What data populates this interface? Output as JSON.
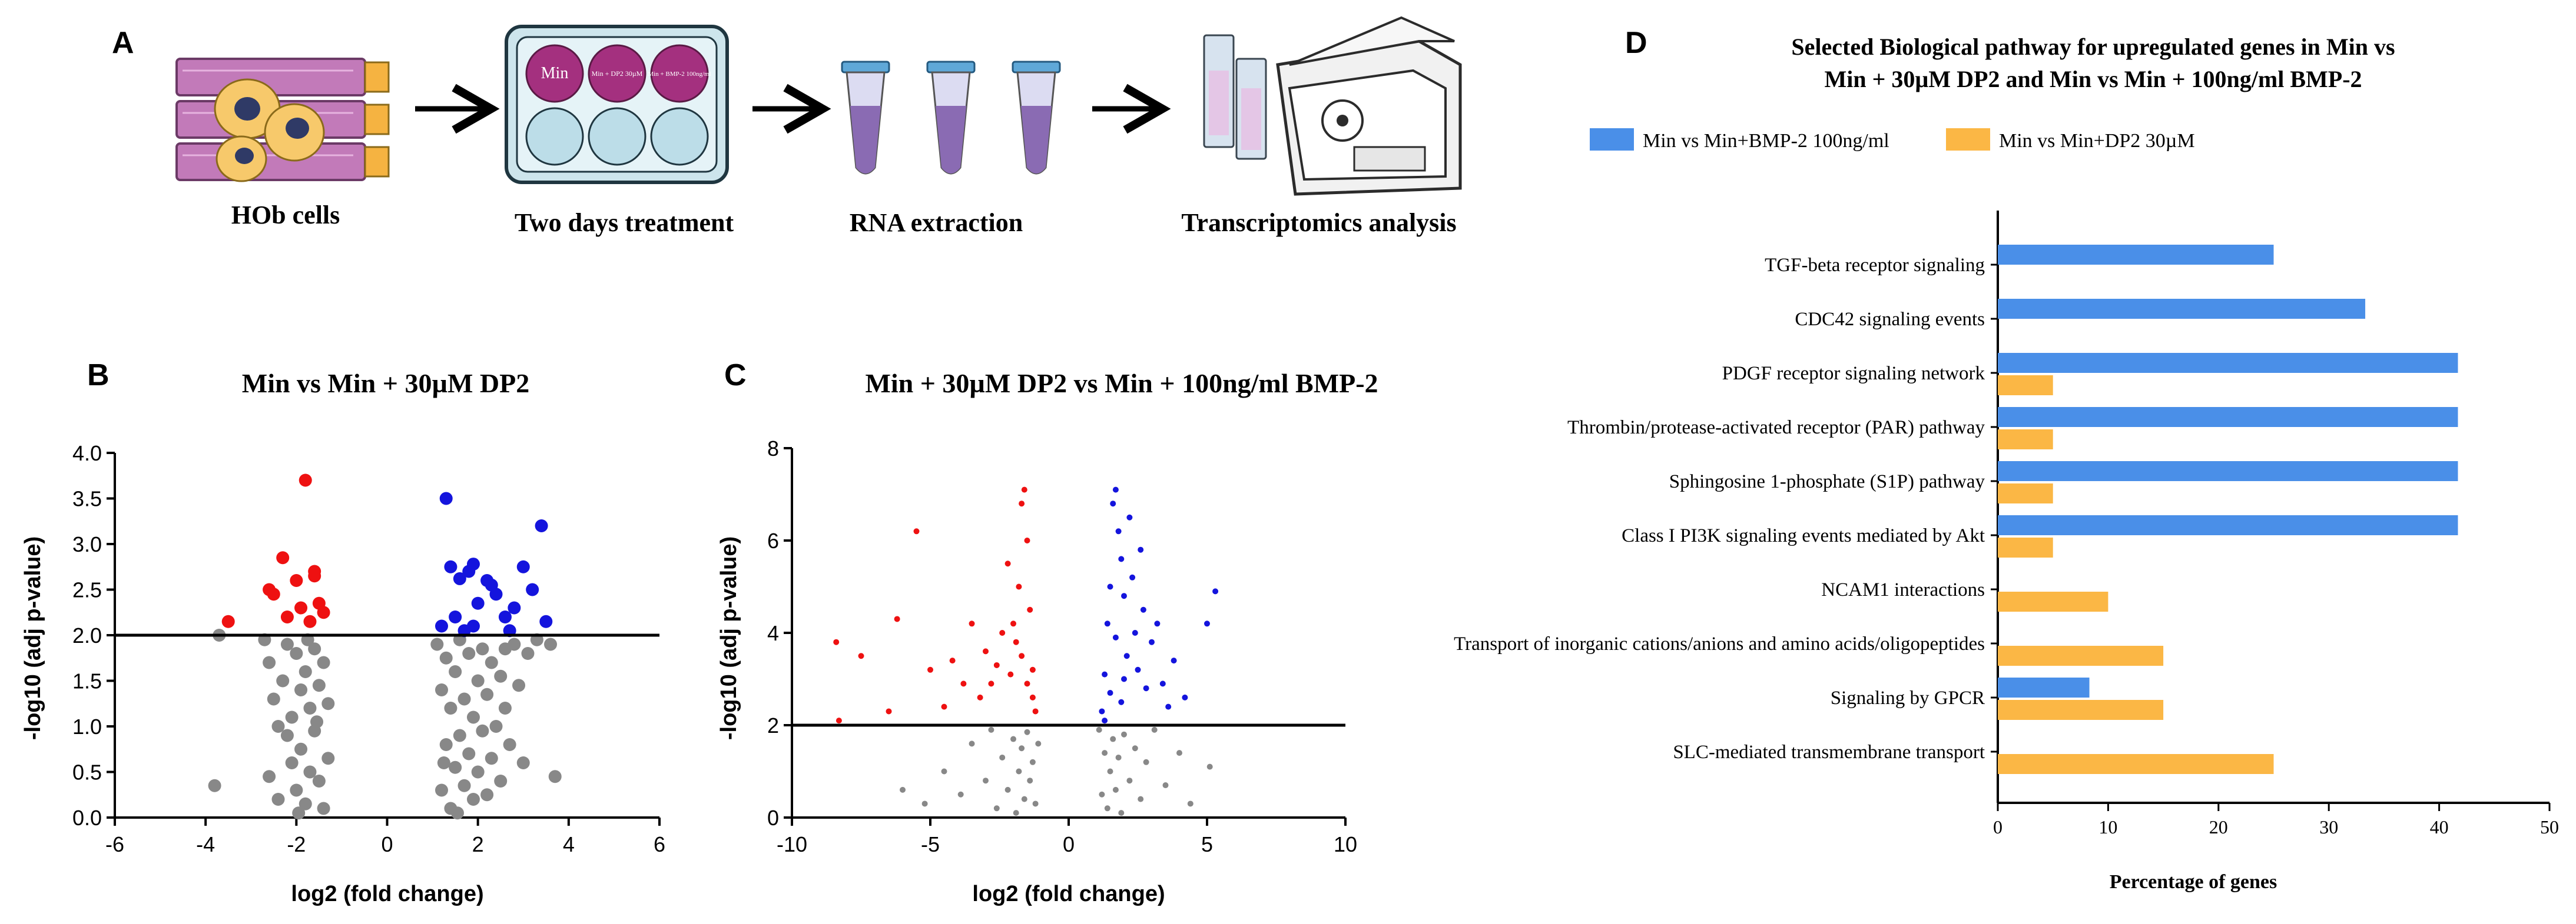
{
  "panels": {
    "a": {
      "letter": "A",
      "steps": [
        "HOb cells",
        "Two days treatment",
        "RNA extraction",
        "Transcriptomics analysis"
      ],
      "plate_labels": [
        "Min",
        "Min + DP2 30µM",
        "Min + BMP-2 100ng/ml"
      ]
    },
    "b": {
      "letter": "B"
    },
    "c": {
      "letter": "C"
    },
    "d": {
      "letter": "D"
    }
  },
  "colors": {
    "red": "#ee1111",
    "blue": "#1414dd",
    "grey": "#888888",
    "bar_blue": "#4a8fe8",
    "bar_orange": "#fbb745",
    "plate_purple": "#a4307f",
    "tube_purple": "#8a6bb3",
    "cell_stack": "#c27ab9"
  },
  "chart_data": [
    {
      "id": "B",
      "type": "scatter",
      "title": "Min vs Min + 30µM DP2",
      "xlabel": "log2 (fold change)",
      "ylabel": "-log10 (adj p-value)",
      "xlim": [
        -6,
        6
      ],
      "ylim": [
        0,
        4
      ],
      "xticks": [
        -6,
        -4,
        -2,
        0,
        2,
        4,
        6
      ],
      "yticks": [
        0.0,
        0.5,
        1.0,
        1.5,
        2.0,
        2.5,
        3.0,
        3.5,
        4.0
      ],
      "threshold": 2.0,
      "series": [
        {
          "name": "up",
          "color": "#1414dd",
          "points": [
            [
              1.3,
              3.5
            ],
            [
              1.4,
              2.75
            ],
            [
              1.6,
              2.62
            ],
            [
              1.8,
              2.7
            ],
            [
              1.9,
              2.78
            ],
            [
              1.2,
              2.1
            ],
            [
              1.5,
              2.2
            ],
            [
              1.7,
              2.05
            ],
            [
              2.2,
              2.6
            ],
            [
              2.4,
              2.45
            ],
            [
              2.6,
              2.2
            ],
            [
              2.8,
              2.3
            ],
            [
              3.0,
              2.75
            ],
            [
              3.2,
              2.5
            ],
            [
              3.4,
              3.2
            ],
            [
              3.5,
              2.15
            ],
            [
              2.0,
              2.35
            ],
            [
              2.3,
              2.55
            ],
            [
              1.9,
              2.1
            ],
            [
              2.7,
              2.05
            ]
          ]
        },
        {
          "name": "down",
          "color": "#ee1111",
          "points": [
            [
              -1.8,
              3.7
            ],
            [
              -2.3,
              2.85
            ],
            [
              -1.6,
              2.7
            ],
            [
              -2.0,
              2.6
            ],
            [
              -2.6,
              2.5
            ],
            [
              -2.5,
              2.45
            ],
            [
              -1.9,
              2.3
            ],
            [
              -1.5,
              2.35
            ],
            [
              -2.2,
              2.2
            ],
            [
              -1.7,
              2.15
            ],
            [
              -1.4,
              2.25
            ],
            [
              -3.5,
              2.15
            ],
            [
              -1.6,
              2.65
            ]
          ]
        },
        {
          "name": "ns",
          "color": "#888888",
          "points": [
            [
              -3.8,
              0.35
            ],
            [
              -3.7,
              2.0
            ],
            [
              -2.7,
              1.95
            ],
            [
              -2.6,
              0.45
            ],
            [
              -2.4,
              0.2
            ],
            [
              -2.5,
              1.3
            ],
            [
              -2.6,
              1.7
            ],
            [
              -2.3,
              1.5
            ],
            [
              -2.2,
              0.9
            ],
            [
              -2.2,
              1.9
            ],
            [
              -2.1,
              0.6
            ],
            [
              -2.1,
              1.1
            ],
            [
              -2.0,
              1.8
            ],
            [
              -2.0,
              0.3
            ],
            [
              -1.9,
              1.4
            ],
            [
              -1.9,
              0.75
            ],
            [
              -1.8,
              1.6
            ],
            [
              -1.8,
              0.15
            ],
            [
              -1.7,
              1.2
            ],
            [
              -1.7,
              0.5
            ],
            [
              -1.6,
              1.85
            ],
            [
              -1.6,
              0.95
            ],
            [
              -1.5,
              1.45
            ],
            [
              -1.5,
              0.4
            ],
            [
              -1.4,
              1.7
            ],
            [
              -1.4,
              0.1
            ],
            [
              -1.3,
              1.25
            ],
            [
              -1.3,
              0.65
            ],
            [
              -2.4,
              1.0
            ],
            [
              -1.95,
              0.05
            ],
            [
              -1.75,
              1.95
            ],
            [
              -1.55,
              1.05
            ],
            [
              1.1,
              1.9
            ],
            [
              1.2,
              0.3
            ],
            [
              1.2,
              1.4
            ],
            [
              1.3,
              0.8
            ],
            [
              1.3,
              1.75
            ],
            [
              1.4,
              0.1
            ],
            [
              1.4,
              1.2
            ],
            [
              1.5,
              0.55
            ],
            [
              1.5,
              1.6
            ],
            [
              1.6,
              0.9
            ],
            [
              1.6,
              1.95
            ],
            [
              1.7,
              0.35
            ],
            [
              1.7,
              1.3
            ],
            [
              1.8,
              0.7
            ],
            [
              1.8,
              1.8
            ],
            [
              1.9,
              0.2
            ],
            [
              1.9,
              1.1
            ],
            [
              2.0,
              0.5
            ],
            [
              2.0,
              1.5
            ],
            [
              2.1,
              0.95
            ],
            [
              2.1,
              1.85
            ],
            [
              2.2,
              0.25
            ],
            [
              2.2,
              1.35
            ],
            [
              2.3,
              0.65
            ],
            [
              2.3,
              1.7
            ],
            [
              2.4,
              1.0
            ],
            [
              2.5,
              0.4
            ],
            [
              2.5,
              1.55
            ],
            [
              2.6,
              1.2
            ],
            [
              2.7,
              0.8
            ],
            [
              2.8,
              1.9
            ],
            [
              2.9,
              1.45
            ],
            [
              3.0,
              0.6
            ],
            [
              3.1,
              1.8
            ],
            [
              3.3,
              1.95
            ],
            [
              3.6,
              1.9
            ],
            [
              3.7,
              0.45
            ],
            [
              2.6,
              1.85
            ],
            [
              1.25,
              0.6
            ],
            [
              1.55,
              0.05
            ]
          ]
        }
      ]
    },
    {
      "id": "C",
      "type": "scatter",
      "title": "Min + 30µM DP2 vs Min + 100ng/ml BMP-2",
      "xlabel": "log2 (fold change)",
      "ylabel": "-log10 (adj p-value)",
      "xlim": [
        -10,
        10
      ],
      "ylim": [
        0,
        8
      ],
      "xticks": [
        -10,
        -5,
        0,
        5,
        10
      ],
      "yticks": [
        0,
        2,
        4,
        6,
        8
      ],
      "threshold": 2.0,
      "series": [
        {
          "name": "up",
          "color": "#1414dd",
          "points": [
            [
              1.2,
              2.3
            ],
            [
              1.3,
              3.1
            ],
            [
              1.4,
              4.2
            ],
            [
              1.5,
              5.0
            ],
            [
              1.6,
              6.8
            ],
            [
              1.7,
              7.1
            ],
            [
              1.8,
              6.2
            ],
            [
              1.9,
              5.6
            ],
            [
              2.0,
              4.8
            ],
            [
              2.1,
              3.5
            ],
            [
              2.2,
              6.5
            ],
            [
              2.3,
              5.2
            ],
            [
              2.4,
              4.0
            ],
            [
              2.5,
              3.2
            ],
            [
              2.6,
              5.8
            ],
            [
              2.7,
              4.5
            ],
            [
              2.8,
              2.8
            ],
            [
              3.0,
              3.8
            ],
            [
              3.2,
              4.2
            ],
            [
              3.4,
              2.9
            ],
            [
              3.6,
              2.4
            ],
            [
              3.8,
              3.4
            ],
            [
              4.2,
              2.6
            ],
            [
              5.0,
              4.2
            ],
            [
              5.3,
              4.9
            ],
            [
              1.3,
              2.1
            ],
            [
              1.5,
              2.7
            ],
            [
              1.7,
              3.9
            ],
            [
              1.9,
              2.5
            ],
            [
              2.0,
              3.0
            ]
          ]
        },
        {
          "name": "down",
          "color": "#ee1111",
          "points": [
            [
              -1.2,
              2.3
            ],
            [
              -1.3,
              3.2
            ],
            [
              -1.4,
              4.5
            ],
            [
              -1.5,
              6.0
            ],
            [
              -1.6,
              7.1
            ],
            [
              -1.7,
              6.8
            ],
            [
              -1.8,
              5.0
            ],
            [
              -1.9,
              3.8
            ],
            [
              -2.0,
              4.2
            ],
            [
              -2.1,
              3.1
            ],
            [
              -2.2,
              5.5
            ],
            [
              -2.4,
              4.0
            ],
            [
              -2.6,
              3.3
            ],
            [
              -2.8,
              2.9
            ],
            [
              -3.0,
              3.6
            ],
            [
              -3.2,
              2.6
            ],
            [
              -3.5,
              4.2
            ],
            [
              -3.8,
              2.9
            ],
            [
              -4.2,
              3.4
            ],
            [
              -4.5,
              2.4
            ],
            [
              -5.0,
              3.2
            ],
            [
              -5.5,
              6.2
            ],
            [
              -6.2,
              4.3
            ],
            [
              -6.5,
              2.3
            ],
            [
              -7.5,
              3.5
            ],
            [
              -8.4,
              3.8
            ],
            [
              -8.3,
              2.1
            ],
            [
              -1.3,
              2.6
            ],
            [
              -1.5,
              2.9
            ],
            [
              -1.7,
              3.5
            ]
          ]
        },
        {
          "name": "ns",
          "color": "#888888",
          "points": [
            [
              -6.0,
              0.6
            ],
            [
              -5.2,
              0.3
            ],
            [
              -4.5,
              1.0
            ],
            [
              -3.9,
              0.5
            ],
            [
              -3.5,
              1.6
            ],
            [
              -3.0,
              0.8
            ],
            [
              -2.8,
              1.9
            ],
            [
              -2.6,
              0.2
            ],
            [
              -2.4,
              1.3
            ],
            [
              -2.2,
              0.6
            ],
            [
              -2.0,
              1.7
            ],
            [
              -1.9,
              0.1
            ],
            [
              -1.8,
              1.0
            ],
            [
              -1.7,
              1.5
            ],
            [
              -1.6,
              0.4
            ],
            [
              -1.5,
              1.85
            ],
            [
              -1.4,
              0.8
            ],
            [
              -1.3,
              1.2
            ],
            [
              -1.2,
              0.3
            ],
            [
              -1.1,
              1.6
            ],
            [
              1.1,
              1.9
            ],
            [
              1.2,
              0.5
            ],
            [
              1.3,
              1.4
            ],
            [
              1.4,
              0.2
            ],
            [
              1.5,
              1.0
            ],
            [
              1.6,
              1.7
            ],
            [
              1.7,
              0.6
            ],
            [
              1.8,
              1.3
            ],
            [
              1.9,
              0.1
            ],
            [
              2.0,
              1.8
            ],
            [
              2.2,
              0.8
            ],
            [
              2.4,
              1.5
            ],
            [
              2.6,
              0.4
            ],
            [
              2.8,
              1.2
            ],
            [
              3.1,
              1.9
            ],
            [
              3.5,
              0.7
            ],
            [
              4.0,
              1.4
            ],
            [
              4.4,
              0.3
            ],
            [
              5.1,
              1.1
            ]
          ]
        }
      ]
    },
    {
      "id": "D",
      "type": "bar",
      "orientation": "horizontal",
      "title": "Selected Biological pathway for upregulated genes in Min vs Min + 30µM DP2 and Min vs Min + 100ng/ml BMP-2",
      "xlabel": "Percentage of genes",
      "xlim": [
        0,
        50
      ],
      "xticks": [
        0,
        10,
        20,
        30,
        40,
        50
      ],
      "legend_position": "top",
      "categories": [
        "TGF-beta receptor signaling",
        "CDC42 signaling events",
        "PDGF receptor signaling network",
        "Thrombin/protease-activated receptor (PAR) pathway",
        "Sphingosine 1-phosphate (S1P) pathway",
        "Class I PI3K signaling events mediated by Akt",
        "NCAM1 interactions",
        "Transport of inorganic cations/anions and amino acids/oligopeptides",
        "Signaling by GPCR",
        "SLC-mediated transmembrane transport"
      ],
      "series": [
        {
          "name": "Min vs Min+BMP-2 100ng/ml",
          "color": "#4a8fe8",
          "values": [
            25,
            33.3,
            41.7,
            41.7,
            41.7,
            41.7,
            0,
            0,
            8.3,
            0
          ]
        },
        {
          "name": "Min vs Min+DP2 30µM",
          "color": "#fbb745",
          "values": [
            0,
            0,
            5,
            5,
            5,
            5,
            10,
            15,
            15,
            25
          ]
        }
      ]
    }
  ]
}
